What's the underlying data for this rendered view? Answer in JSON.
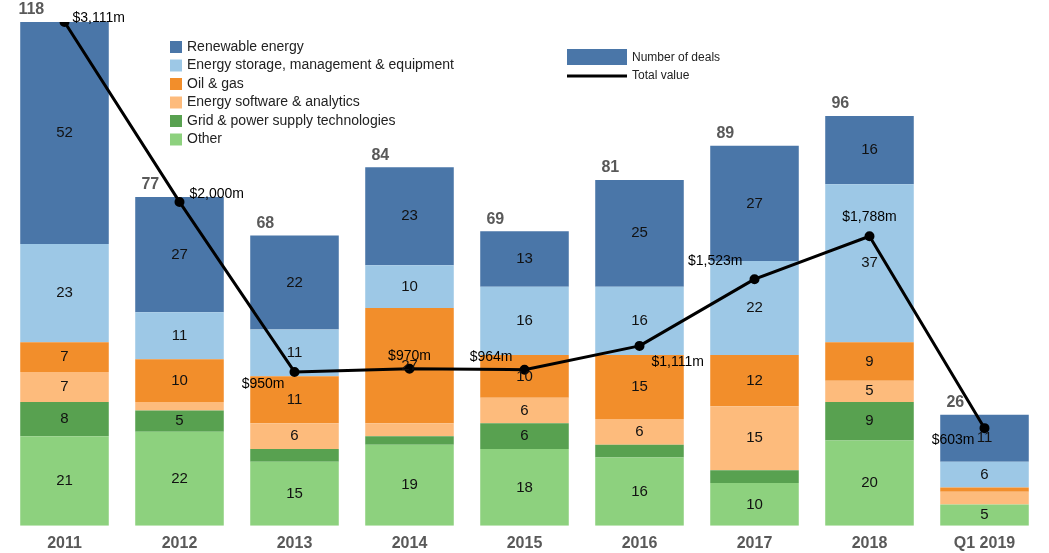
{
  "chart_data": {
    "type": "bar",
    "stacked": true,
    "categories": [
      "2011",
      "2012",
      "2013",
      "2014",
      "2015",
      "2016",
      "2017",
      "2018",
      "Q1 2019"
    ],
    "series": [
      {
        "name": "Other",
        "color": "#8dd17e",
        "values": [
          21,
          22,
          15,
          19,
          18,
          16,
          10,
          20,
          5
        ],
        "value_labels": [
          "21",
          "22",
          "15",
          "19",
          "18",
          "16",
          "10",
          "20",
          "5"
        ]
      },
      {
        "name": "Grid & power supply technologies",
        "color": "#58a150",
        "values": [
          8,
          5,
          3,
          2,
          6,
          3,
          3,
          9,
          0
        ],
        "value_labels": [
          "8",
          "5",
          null,
          null,
          "6",
          null,
          null,
          "9",
          null
        ]
      },
      {
        "name": "Energy software & analytics",
        "color": "#fdbb7c",
        "values": [
          7,
          2,
          6,
          3,
          6,
          6,
          15,
          5,
          3
        ],
        "value_labels": [
          "7",
          null,
          "6",
          null,
          "6",
          "6",
          "15",
          "5",
          null
        ]
      },
      {
        "name": "Oil & gas",
        "color": "#f28e2b",
        "values": [
          7,
          10,
          11,
          27,
          10,
          15,
          12,
          9,
          1
        ],
        "value_labels": [
          "7",
          "10",
          "11",
          "27",
          "10",
          "15",
          "12",
          "9",
          null
        ]
      },
      {
        "name": "Energy storage, management & equipment",
        "color": "#9dc8e6",
        "values": [
          23,
          11,
          11,
          10,
          16,
          16,
          22,
          37,
          6
        ],
        "value_labels": [
          "23",
          "11",
          "11",
          "10",
          "16",
          "16",
          "22",
          "37",
          "6"
        ]
      },
      {
        "name": "Renewable energy",
        "color": "#4a76a8",
        "values": [
          52,
          27,
          22,
          23,
          13,
          25,
          27,
          16,
          11
        ],
        "value_labels": [
          "52",
          "27",
          "22",
          "23",
          "13",
          "25",
          "27",
          "16",
          "11"
        ]
      },
      {
        "name": "Total value",
        "type": "line",
        "axis": "y2",
        "color": "#000000",
        "values": [
          3111,
          2000,
          950,
          970,
          964,
          1111,
          1523,
          1788,
          603
        ],
        "value_labels": [
          "$3,111m",
          "$2,000m",
          "$950m",
          "$970m",
          "$964m",
          "$1,111m",
          "$1,523m",
          "$1,788m",
          "$603m"
        ]
      }
    ],
    "totals": [
      "118",
      "77",
      "68",
      "84",
      "69",
      "81",
      "89",
      "96",
      "26"
    ],
    "tick_labels": "x",
    "legend": "top left",
    "marker": "circle",
    "line_style": "solid",
    "grid": false,
    "annotations": [
      "Number of deals"
    ]
  }
}
